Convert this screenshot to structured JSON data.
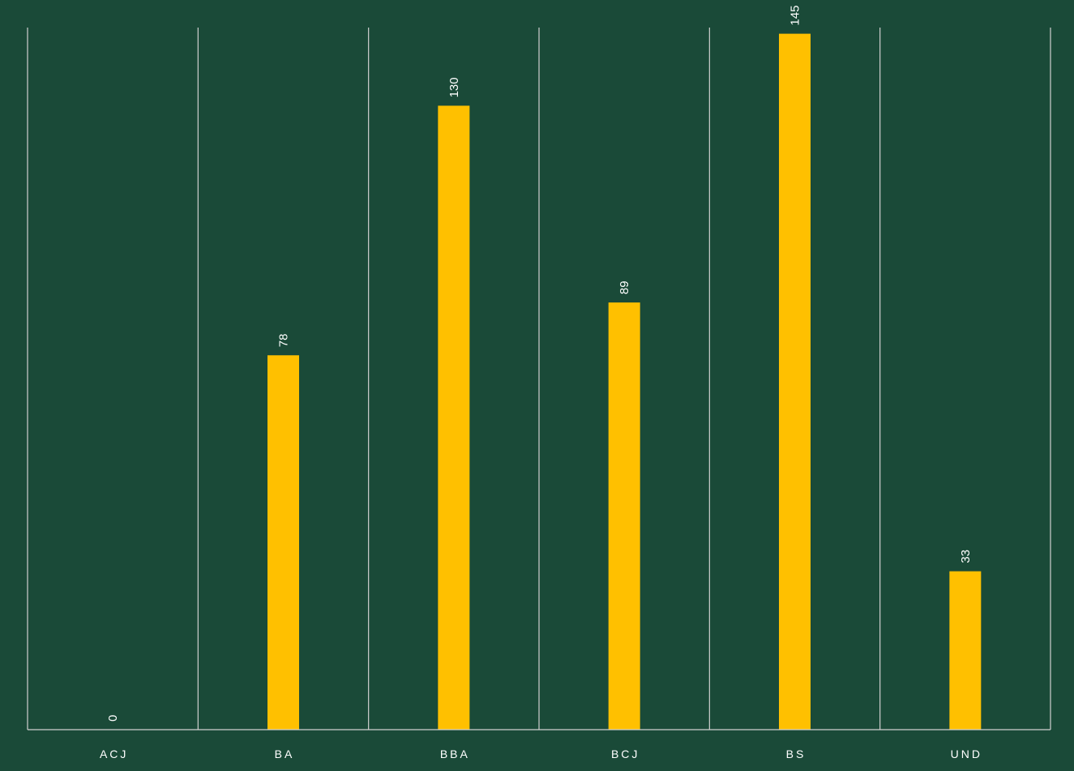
{
  "chart_data": {
    "type": "bar",
    "categories": [
      "ACJ",
      "BA",
      "BBA",
      "BCJ",
      "BS",
      "UND"
    ],
    "values": [
      0,
      78,
      130,
      89,
      145,
      33
    ],
    "title": "",
    "xlabel": "",
    "ylabel": "",
    "ylim": [
      0,
      150
    ],
    "grid": "vertical category dividers",
    "legend": "none",
    "data_labels": "rotated above bars",
    "colors": {
      "background": "#1a4a38",
      "bar": "#ffc000",
      "axis": "#d0d0d0",
      "text": "#ffffff"
    }
  }
}
